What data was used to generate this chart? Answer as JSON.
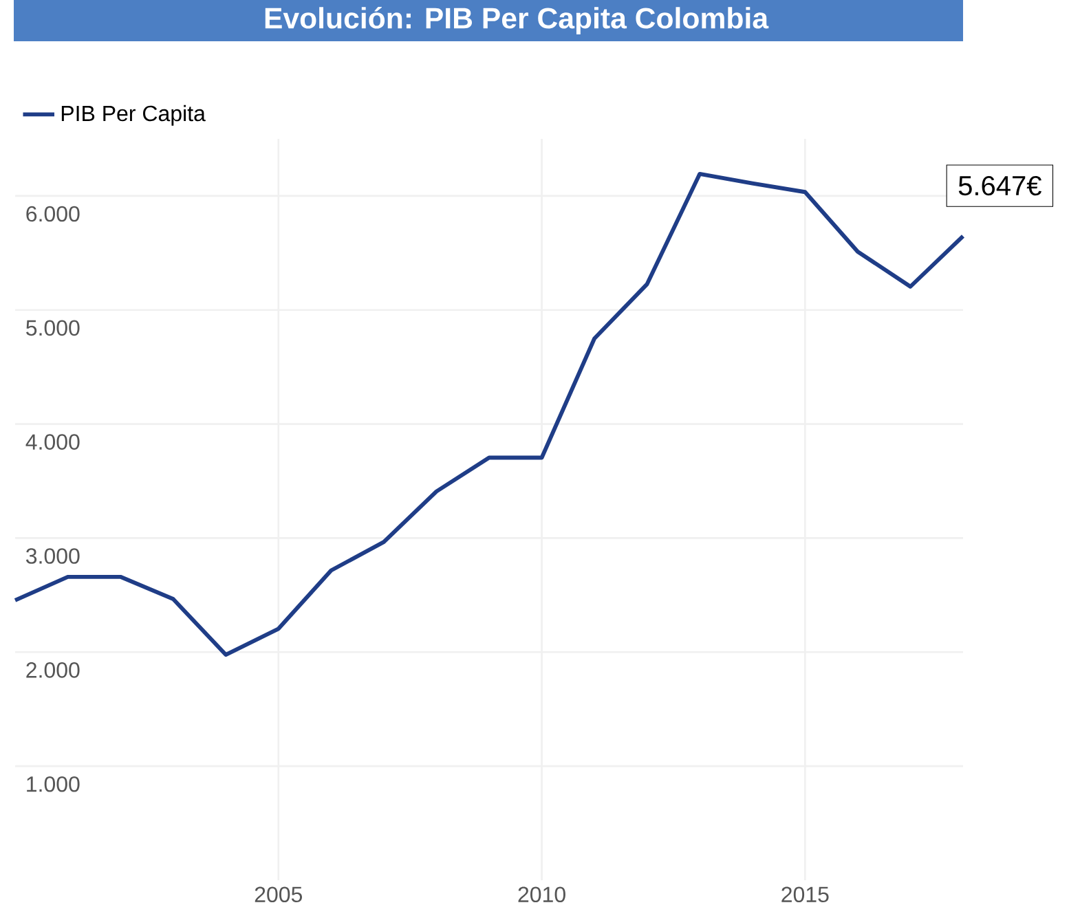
{
  "chart_data": {
    "type": "line",
    "title": "Evolución: PIB Per Capita Colombia",
    "x": [
      2000,
      2001,
      2002,
      2003,
      2004,
      2005,
      2006,
      2007,
      2008,
      2009,
      2010,
      2011,
      2012,
      2013,
      2014,
      2015,
      2016,
      2017,
      2018
    ],
    "series": [
      {
        "name": "PIB Per Capita",
        "color": "#1f3d87",
        "values": [
          2455,
          2660,
          2660,
          2466,
          1977,
          2205,
          2716,
          2966,
          3409,
          3705,
          3705,
          4750,
          5227,
          6193,
          6110,
          6034,
          5511,
          5205,
          5647
        ]
      }
    ],
    "xlim": [
      2000,
      2018
    ],
    "xticks": [
      2005,
      2010,
      2015
    ],
    "ylim": [
      0,
      6500
    ],
    "yticks": [
      {
        "value": 1000,
        "label": "1.000"
      },
      {
        "value": 2000,
        "label": "2.000"
      },
      {
        "value": 3000,
        "label": "3.000"
      },
      {
        "value": 4000,
        "label": "4.000"
      },
      {
        "value": 5000,
        "label": "5.000"
      },
      {
        "value": 6000,
        "label": "6.000"
      }
    ],
    "annotations": [
      {
        "text": "5.647€",
        "x": 2018,
        "y": 5647
      }
    ],
    "grid": true,
    "legend": "top left",
    "marker": "none",
    "line_style": "solid"
  }
}
